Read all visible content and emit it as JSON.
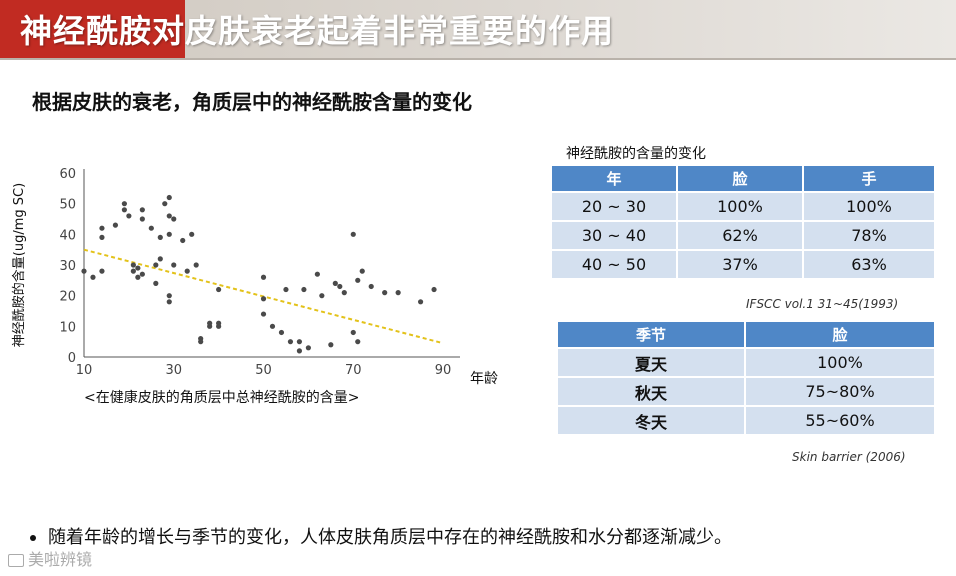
{
  "header": {
    "title": "神经酰胺对皮肤衰老起着非常重要的作用"
  },
  "subtitle": "根据皮肤的衰老，角质层中的神经酰胺含量的变化",
  "chart_data": {
    "type": "scatter",
    "ylabel": "神经酰胺的含量(ug/mg SC)",
    "xlabel": "年龄",
    "caption": "<在健康皮肤的角质层中总神经酰胺的含量>",
    "x_ticks": [
      10,
      30,
      50,
      70,
      90
    ],
    "y_ticks": [
      0,
      10,
      20,
      30,
      40,
      50,
      60
    ],
    "xlim": [
      10,
      92
    ],
    "ylim": [
      0,
      60
    ],
    "points": [
      [
        10,
        28
      ],
      [
        12,
        26
      ],
      [
        14,
        39
      ],
      [
        14,
        42
      ],
      [
        14,
        28
      ],
      [
        17,
        43
      ],
      [
        19,
        48
      ],
      [
        19,
        50
      ],
      [
        20,
        46
      ],
      [
        21,
        28
      ],
      [
        21,
        30
      ],
      [
        22,
        26
      ],
      [
        22,
        29
      ],
      [
        23,
        48
      ],
      [
        23,
        45
      ],
      [
        23,
        27
      ],
      [
        25,
        42
      ],
      [
        26,
        30
      ],
      [
        26,
        24
      ],
      [
        27,
        39
      ],
      [
        27,
        32
      ],
      [
        28,
        50
      ],
      [
        29,
        52
      ],
      [
        29,
        46
      ],
      [
        29,
        40
      ],
      [
        29,
        20
      ],
      [
        29,
        18
      ],
      [
        30,
        45
      ],
      [
        30,
        30
      ],
      [
        32,
        38
      ],
      [
        33,
        28
      ],
      [
        34,
        40
      ],
      [
        35,
        30
      ],
      [
        36,
        5
      ],
      [
        36,
        6
      ],
      [
        38,
        10
      ],
      [
        38,
        11
      ],
      [
        40,
        11
      ],
      [
        40,
        10
      ],
      [
        40,
        22
      ],
      [
        50,
        26
      ],
      [
        50,
        19
      ],
      [
        50,
        14
      ],
      [
        52,
        10
      ],
      [
        54,
        8
      ],
      [
        55,
        22
      ],
      [
        56,
        5
      ],
      [
        58,
        5
      ],
      [
        58,
        2
      ],
      [
        59,
        22
      ],
      [
        60,
        3
      ],
      [
        62,
        27
      ],
      [
        63,
        20
      ],
      [
        65,
        4
      ],
      [
        66,
        24
      ],
      [
        67,
        23
      ],
      [
        68,
        21
      ],
      [
        70,
        40
      ],
      [
        70,
        8
      ],
      [
        71,
        5
      ],
      [
        71,
        25
      ],
      [
        72,
        28
      ],
      [
        74,
        23
      ],
      [
        77,
        21
      ],
      [
        80,
        21
      ],
      [
        85,
        18
      ],
      [
        88,
        22
      ]
    ],
    "trendline": {
      "x": [
        10,
        90
      ],
      "y": [
        35,
        4.5
      ]
    }
  },
  "table1": {
    "title": "神经酰胺的含量的变化",
    "headers": [
      "年",
      "脸",
      "手"
    ],
    "rows": [
      [
        "20 ~ 30",
        "100%",
        "100%"
      ],
      [
        "30 ~ 40",
        "62%",
        "78%"
      ],
      [
        "40 ~ 50",
        "37%",
        "63%"
      ]
    ],
    "source": "IFSCC vol.1 31~45(1993)"
  },
  "table2": {
    "headers": [
      "季节",
      "脸"
    ],
    "rows": [
      [
        "夏天",
        "100%"
      ],
      [
        "秋天",
        "75~80%"
      ],
      [
        "冬天",
        "55~60%"
      ]
    ],
    "source": "Skin barrier (2006)"
  },
  "bullet": "随着年龄的增长与季节的变化，人体皮肤角质层中存在的神经酰胺和水分都逐渐减少。",
  "watermark": "美啦辨镜",
  "colors": {
    "header_red": "#c12b22",
    "table_header": "#4f87c7",
    "table_cell": "#d4e0ef",
    "point": "#4a4a4a",
    "trendline": "#e3c21a"
  }
}
